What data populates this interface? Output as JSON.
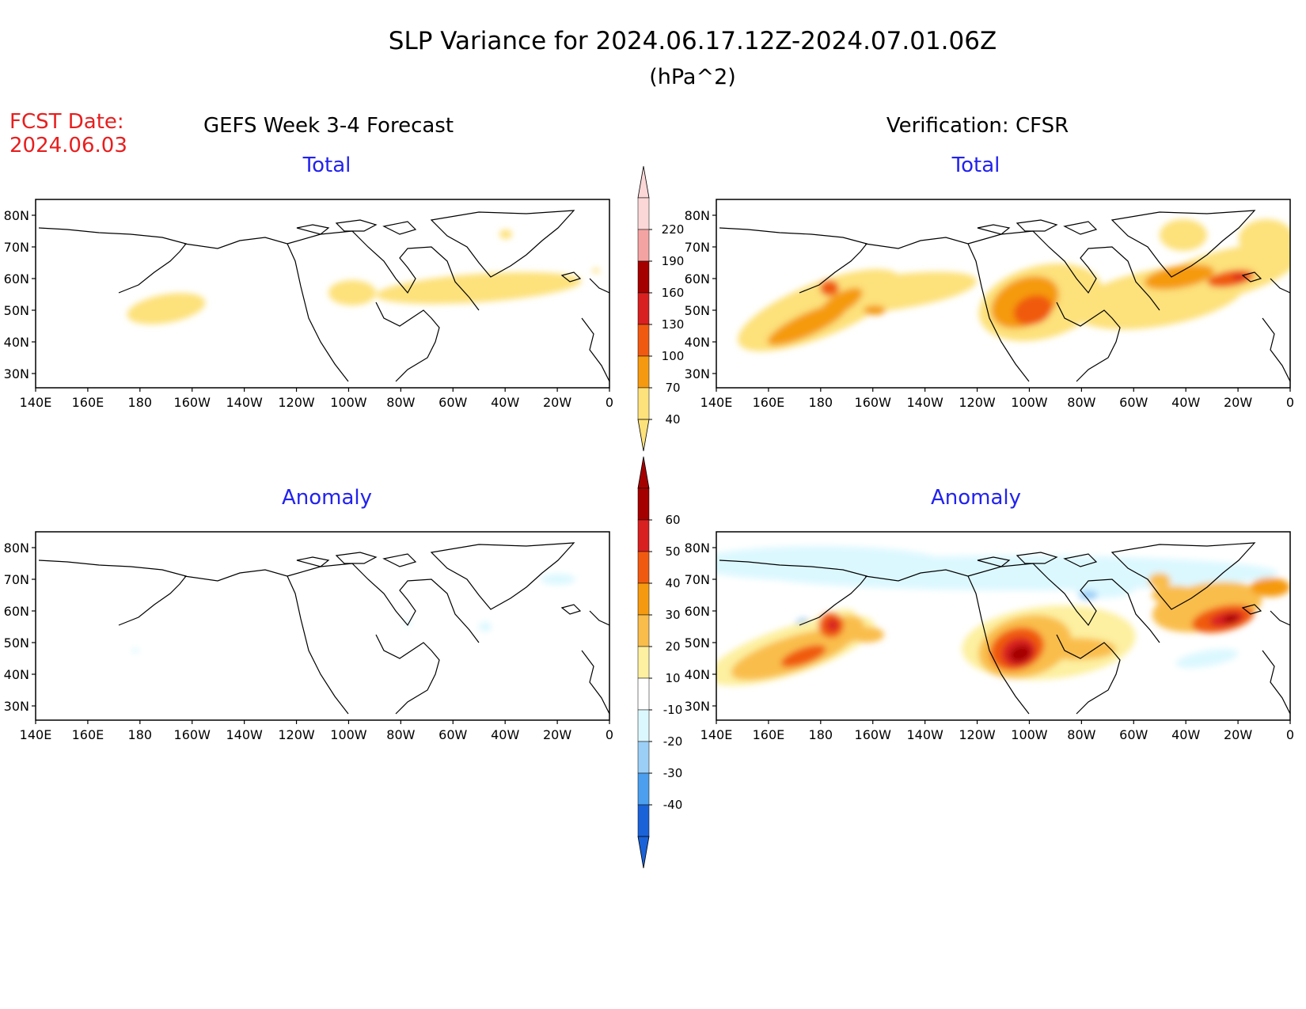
{
  "header": {
    "title": "SLP Variance for 2024.06.17.12Z-2024.07.01.06Z",
    "units": "(hPa^2)",
    "fcst_label": "FCST Date:",
    "fcst_date": "2024.06.03"
  },
  "columns": {
    "left": "GEFS Week 3-4 Forecast",
    "right": "Verification: CFSR"
  },
  "panel_titles": {
    "forecast_total": "Total",
    "verification_total": "Total",
    "forecast_anomaly": "Anomaly",
    "verification_anomaly": "Anomaly"
  },
  "axes": {
    "lat_labels": [
      "80N",
      "70N",
      "60N",
      "50N",
      "40N",
      "30N"
    ],
    "lon_labels": [
      "140E",
      "160E",
      "180",
      "160W",
      "140W",
      "120W",
      "100W",
      "80W",
      "60W",
      "40W",
      "20W",
      "0"
    ]
  },
  "colorbars": {
    "total": {
      "labels": [
        "220",
        "190",
        "160",
        "130",
        "100",
        "70",
        "40"
      ],
      "colors": [
        "#fbd7d7",
        "#f4a3a3",
        "#a50000",
        "#d82020",
        "#f05a10",
        "#f59a10",
        "#fde17a"
      ]
    },
    "anomaly": {
      "labels": [
        "60",
        "50",
        "40",
        "30",
        "20",
        "10",
        "-10",
        "-20",
        "-30",
        "-40"
      ],
      "colors": [
        "#a50000",
        "#d82020",
        "#f05a10",
        "#f59a10",
        "#f9bd4c",
        "#fdf0a0",
        "#ffffff",
        "#dcf8ff",
        "#9ccff6",
        "#4c9fee",
        "#1a62d8"
      ]
    }
  }
}
